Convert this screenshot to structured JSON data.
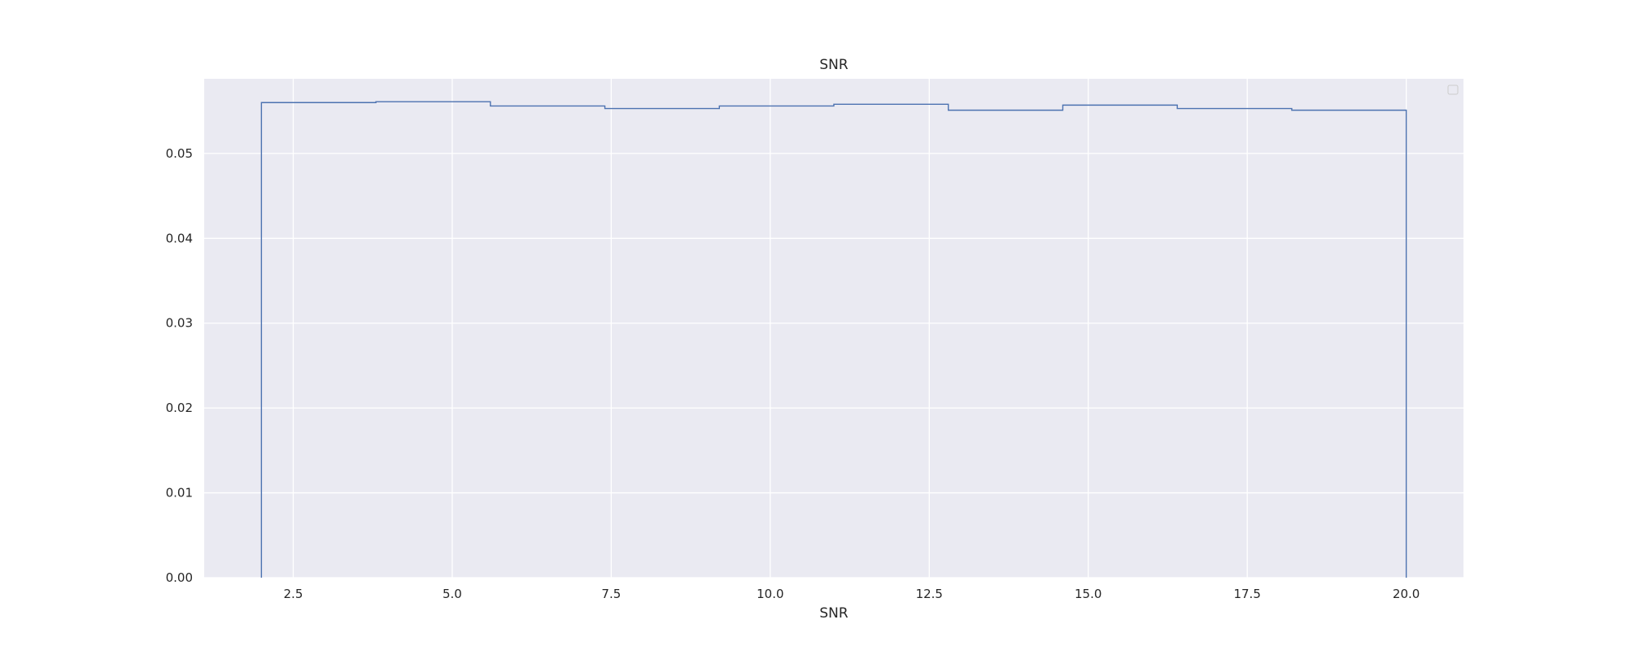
{
  "chart_data": {
    "type": "histogram-step",
    "title": "SNR",
    "xlabel": "SNR",
    "ylabel": "",
    "xlim": [
      1.1,
      20.9
    ],
    "ylim": [
      0,
      0.0588
    ],
    "x_ticks": [
      2.5,
      5.0,
      7.5,
      10.0,
      12.5,
      15.0,
      17.5,
      20.0
    ],
    "x_tick_labels": [
      "2.5",
      "5.0",
      "7.5",
      "10.0",
      "12.5",
      "15.0",
      "17.5",
      "20.0"
    ],
    "y_ticks": [
      0.0,
      0.01,
      0.02,
      0.03,
      0.04,
      0.05
    ],
    "y_tick_labels": [
      "0.00",
      "0.01",
      "0.02",
      "0.03",
      "0.04",
      "0.05"
    ],
    "bin_edges": [
      2.0,
      3.8,
      5.6,
      7.4,
      9.2,
      11.0,
      12.8,
      14.6,
      16.4,
      18.2,
      20.0
    ],
    "values": [
      0.056,
      0.0561,
      0.0556,
      0.0553,
      0.0556,
      0.0558,
      0.0551,
      0.0557,
      0.0553,
      0.0551
    ],
    "grid": true,
    "legend": "top-right (empty)",
    "colors": {
      "line": "#4c72b0",
      "plot_background": "#eaeaf2",
      "grid": "#ffffff"
    }
  }
}
